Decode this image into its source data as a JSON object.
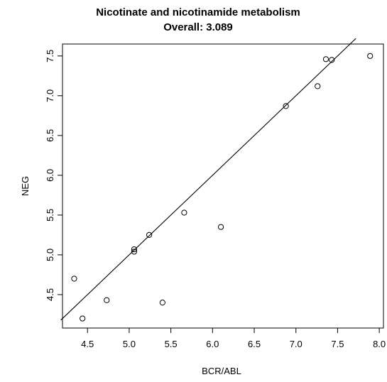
{
  "chart_data": {
    "type": "scatter",
    "title": "Nicotinate and nicotinamide metabolism",
    "subtitle": "Overall: 3.089",
    "xlabel": "BCR/ABL",
    "ylabel": "NEG",
    "xlim": [
      4.2,
      8.05
    ],
    "ylim": [
      4.08,
      7.65
    ],
    "x_ticks": [
      "4.5",
      "5.0",
      "5.5",
      "6.0",
      "6.5",
      "7.0",
      "7.5",
      "8.0"
    ],
    "y_ticks": [
      "4.5",
      "5.0",
      "5.5",
      "6.0",
      "6.5",
      "7.0",
      "7.5"
    ],
    "grid": false,
    "points": [
      {
        "x": 4.34,
        "y": 4.7
      },
      {
        "x": 4.44,
        "y": 4.2
      },
      {
        "x": 4.73,
        "y": 4.43
      },
      {
        "x": 5.06,
        "y": 5.04
      },
      {
        "x": 5.06,
        "y": 5.07
      },
      {
        "x": 5.24,
        "y": 5.25
      },
      {
        "x": 5.4,
        "y": 4.4
      },
      {
        "x": 5.66,
        "y": 5.53
      },
      {
        "x": 6.1,
        "y": 5.35
      },
      {
        "x": 6.88,
        "y": 6.87
      },
      {
        "x": 7.26,
        "y": 7.12
      },
      {
        "x": 7.36,
        "y": 7.46
      },
      {
        "x": 7.43,
        "y": 7.45
      },
      {
        "x": 7.89,
        "y": 7.5
      }
    ],
    "reference_line": {
      "type": "identity",
      "from": [
        4.18,
        4.18
      ],
      "to": [
        7.72,
        7.72
      ]
    }
  }
}
